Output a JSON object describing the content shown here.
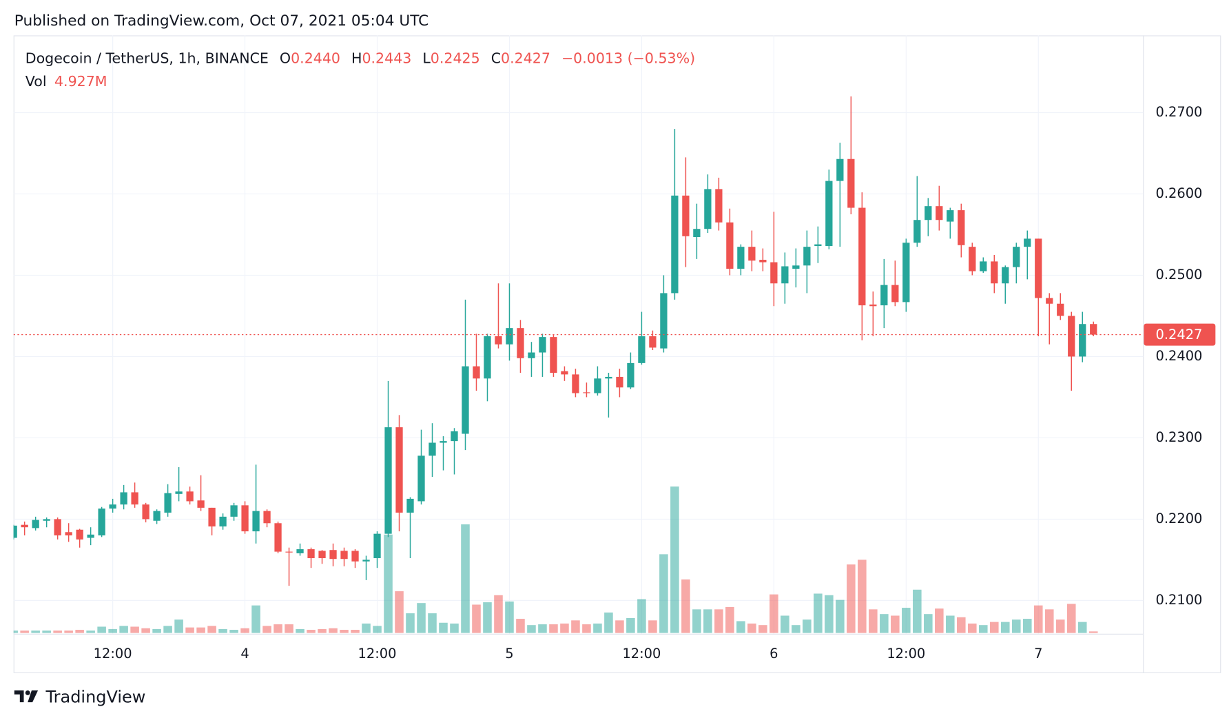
{
  "published": "Published on TradingView.com, Oct 07, 2021 05:04 UTC",
  "brand": "TradingView",
  "legend": {
    "symbol": "Dogecoin / TetherUS, 1h, BINANCE",
    "items": [
      {
        "key": "O",
        "value": "0.2440"
      },
      {
        "key": "H",
        "value": "0.2443"
      },
      {
        "key": "L",
        "value": "0.2425"
      },
      {
        "key": "C",
        "value": "0.2427"
      }
    ],
    "change": "−0.0013 (−0.53%)",
    "vol_key": "Vol",
    "vol_value": "4.927M"
  },
  "chart_data": {
    "type": "candlestick",
    "up_color": "#26a69a",
    "down_color": "#ef5350",
    "grid": true,
    "categories": [
      null,
      null,
      null,
      null,
      null,
      null,
      null,
      null,
      null,
      "12:00",
      null,
      null,
      null,
      null,
      null,
      null,
      null,
      null,
      null,
      null,
      null,
      "4",
      null,
      null,
      null,
      null,
      null,
      null,
      null,
      null,
      null,
      null,
      null,
      "12:00",
      null,
      null,
      null,
      null,
      null,
      null,
      null,
      null,
      null,
      null,
      null,
      "5",
      null,
      null,
      null,
      null,
      null,
      null,
      null,
      null,
      null,
      null,
      null,
      "12:00",
      null,
      null,
      null,
      null,
      null,
      null,
      null,
      null,
      null,
      null,
      null,
      "6",
      null,
      null,
      null,
      null,
      null,
      null,
      null,
      null,
      null,
      null,
      null,
      "12:00",
      null,
      null,
      null,
      null,
      null,
      null,
      null,
      null,
      null,
      null,
      null,
      "7",
      null,
      null,
      null,
      null,
      null
    ],
    "open": [
      0.2177,
      0.2193,
      0.2189,
      0.2198,
      0.22,
      0.2184,
      0.2187,
      0.2177,
      0.218,
      0.2213,
      0.2218,
      0.2233,
      0.2218,
      0.2198,
      0.2208,
      0.2231,
      0.2234,
      0.2223,
      0.2214,
      0.2191,
      0.2203,
      0.2217,
      0.2185,
      0.221,
      0.2195,
      0.216,
      0.2158,
      0.2163,
      0.2161,
      0.2162,
      0.2161,
      0.2161,
      0.2148,
      0.2152,
      0.2182,
      0.2313,
      0.2208,
      0.2222,
      0.2278,
      0.2294,
      0.2296,
      0.2305,
      0.2388,
      0.2373,
      0.2425,
      0.2415,
      0.2435,
      0.2398,
      0.2405,
      0.2424,
      0.2382,
      0.2378,
      0.2356,
      0.2355,
      0.2373,
      0.2375,
      0.2362,
      0.2392,
      0.2425,
      0.241,
      0.2478,
      0.2598,
      0.2547,
      0.2557,
      0.2606,
      0.2565,
      0.2508,
      0.2535,
      0.2519,
      0.2516,
      0.249,
      0.2508,
      0.2512,
      0.2536,
      0.2536,
      0.2616,
      0.2643,
      0.2583,
      0.2464,
      0.2463,
      0.2488,
      0.2467,
      0.254,
      0.2568,
      0.2585,
      0.2566,
      0.258,
      0.2535,
      0.2505,
      0.2517,
      0.249,
      0.251,
      0.2535,
      0.2545,
      0.2472,
      0.2465,
      0.245,
      0.24,
      0.244
    ],
    "high": [
      0.2193,
      0.2197,
      0.2203,
      0.2202,
      0.2202,
      0.2195,
      0.2188,
      0.219,
      0.2215,
      0.2225,
      0.2242,
      0.2245,
      0.222,
      0.2212,
      0.2243,
      0.2264,
      0.224,
      0.2254,
      0.2214,
      0.2207,
      0.222,
      0.2222,
      0.2267,
      0.2212,
      0.2197,
      0.2165,
      0.217,
      0.2165,
      0.2162,
      0.217,
      0.2165,
      0.2163,
      0.2155,
      0.2185,
      0.237,
      0.2328,
      0.2227,
      0.231,
      0.2318,
      0.2302,
      0.2312,
      0.247,
      0.2428,
      0.2428,
      0.249,
      0.249,
      0.2445,
      0.2418,
      0.2428,
      0.2427,
      0.2388,
      0.2385,
      0.2368,
      0.2388,
      0.238,
      0.2385,
      0.2405,
      0.2455,
      0.2432,
      0.25,
      0.268,
      0.2645,
      0.2588,
      0.2624,
      0.262,
      0.2582,
      0.2538,
      0.2555,
      0.2533,
      0.2578,
      0.2528,
      0.2533,
      0.2555,
      0.256,
      0.263,
      0.2663,
      0.272,
      0.2602,
      0.248,
      0.252,
      0.2518,
      0.2545,
      0.2622,
      0.2595,
      0.261,
      0.2583,
      0.2588,
      0.254,
      0.2522,
      0.2525,
      0.2512,
      0.254,
      0.2555,
      0.2545,
      0.2478,
      0.2478,
      0.2455,
      0.2455,
      0.2443
    ],
    "low": [
      0.2175,
      0.218,
      0.2186,
      0.219,
      0.2175,
      0.2172,
      0.2165,
      0.2168,
      0.2178,
      0.2208,
      0.2212,
      0.2214,
      0.2196,
      0.2194,
      0.2203,
      0.2222,
      0.2218,
      0.221,
      0.218,
      0.2187,
      0.2198,
      0.2182,
      0.217,
      0.219,
      0.2158,
      0.2118,
      0.2155,
      0.214,
      0.2145,
      0.2142,
      0.2142,
      0.214,
      0.2125,
      0.214,
      0.2178,
      0.2185,
      0.2152,
      0.2218,
      0.2252,
      0.226,
      0.2255,
      0.2285,
      0.2358,
      0.2345,
      0.241,
      0.2395,
      0.238,
      0.2375,
      0.2375,
      0.2375,
      0.237,
      0.235,
      0.235,
      0.2352,
      0.2325,
      0.235,
      0.236,
      0.239,
      0.2408,
      0.2405,
      0.247,
      0.251,
      0.252,
      0.2552,
      0.2555,
      0.25,
      0.25,
      0.2505,
      0.2505,
      0.2462,
      0.2465,
      0.2485,
      0.2478,
      0.2515,
      0.2532,
      0.2535,
      0.2575,
      0.242,
      0.2425,
      0.2435,
      0.2462,
      0.2455,
      0.2535,
      0.2548,
      0.2555,
      0.2545,
      0.2522,
      0.25,
      0.2503,
      0.2478,
      0.2465,
      0.249,
      0.2495,
      0.2425,
      0.2415,
      0.2445,
      0.2358,
      0.2393,
      0.2425
    ],
    "close": [
      0.2192,
      0.219,
      0.2199,
      0.22,
      0.218,
      0.218,
      0.2175,
      0.2181,
      0.2213,
      0.2218,
      0.2233,
      0.2218,
      0.22,
      0.221,
      0.2232,
      0.2234,
      0.2222,
      0.2214,
      0.2191,
      0.2203,
      0.2217,
      0.2185,
      0.221,
      0.2195,
      0.216,
      0.2159,
      0.2163,
      0.2152,
      0.2152,
      0.2151,
      0.2151,
      0.2148,
      0.215,
      0.2182,
      0.2313,
      0.2208,
      0.2225,
      0.2278,
      0.2294,
      0.2296,
      0.2308,
      0.2388,
      0.2373,
      0.2425,
      0.2415,
      0.2435,
      0.2398,
      0.2405,
      0.2424,
      0.238,
      0.2378,
      0.2355,
      0.2355,
      0.2373,
      0.2375,
      0.2362,
      0.2392,
      0.2425,
      0.2411,
      0.2478,
      0.2598,
      0.2548,
      0.2557,
      0.2606,
      0.2565,
      0.2508,
      0.2535,
      0.2518,
      0.2516,
      0.249,
      0.2511,
      0.2512,
      0.2535,
      0.2538,
      0.2616,
      0.2643,
      0.2583,
      0.2463,
      0.2462,
      0.2488,
      0.2467,
      0.254,
      0.2568,
      0.2585,
      0.2568,
      0.258,
      0.2537,
      0.2505,
      0.2517,
      0.249,
      0.251,
      0.2535,
      0.2545,
      0.2472,
      0.2465,
      0.245,
      0.24,
      0.244,
      0.2427
    ],
    "volume": [
      7.5,
      7.5,
      7.5,
      7.5,
      7.5,
      7.5,
      10,
      7.5,
      20,
      12.5,
      22.5,
      20,
      15,
      12.5,
      22.5,
      42.5,
      17.5,
      17.5,
      22.5,
      12.5,
      10,
      15,
      87.5,
      22.5,
      27.5,
      27.5,
      12.5,
      10,
      12.5,
      15,
      10,
      10,
      30,
      22.5,
      312.5,
      132.5,
      62.5,
      95,
      62.5,
      32.5,
      30,
      345,
      90,
      97.5,
      120,
      100,
      45,
      25,
      27.5,
      27.5,
      30,
      40,
      27.5,
      30,
      65,
      40,
      47.5,
      107.5,
      40,
      250,
      465,
      170,
      75,
      75,
      75,
      82.5,
      37.5,
      30,
      25,
      122.5,
      55,
      25,
      42.5,
      125,
      120,
      105,
      217.5,
      232.5,
      75,
      60,
      55,
      80,
      137.5,
      60,
      77.5,
      55,
      50,
      30,
      25,
      35,
      35,
      42.5,
      45,
      87.5,
      75,
      42.5,
      92.5,
      35,
      4.927
    ],
    "vlim": [
      0,
      500
    ],
    "ylim": [
      0.2059,
      0.2795
    ],
    "yticks": [
      {
        "value": 0.21,
        "label": "0.2100"
      },
      {
        "value": 0.22,
        "label": "0.2200"
      },
      {
        "value": 0.23,
        "label": "0.2300"
      },
      {
        "value": 0.24,
        "label": "0.2400"
      },
      {
        "value": 0.25,
        "label": "0.2500"
      },
      {
        "value": 0.26,
        "label": "0.2600"
      },
      {
        "value": 0.27,
        "label": "0.2700"
      }
    ],
    "last_price": {
      "value": 0.2427,
      "label": "0.2427"
    }
  }
}
